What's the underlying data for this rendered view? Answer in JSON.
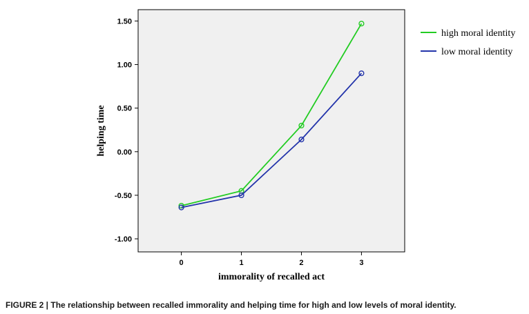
{
  "caption": "FIGURE 2 | The relationship between recalled immorality and helping time for high and low levels of moral identity.",
  "chart_data": {
    "type": "line",
    "xlabel": "immorality of recalled act",
    "ylabel": "helping time",
    "x": [
      0,
      1,
      2,
      3
    ],
    "x_tick_labels": [
      "0",
      "1",
      "2",
      "3"
    ],
    "y_ticks": [
      1.5,
      1.0,
      0.5,
      0.0,
      -0.5,
      -1.0
    ],
    "y_tick_labels": [
      "1.50",
      "1.00",
      "0.50",
      "0.00",
      "-0.50",
      "-1.00"
    ],
    "xlim": [
      -0.72,
      3.72
    ],
    "ylim": [
      -1.15,
      1.63
    ],
    "grid": false,
    "legend_position": "right",
    "plot_background": "#f0f0f0",
    "series": [
      {
        "name": "high moral identity",
        "color": "#22cc22",
        "values": [
          -0.62,
          -0.45,
          0.3,
          1.47
        ]
      },
      {
        "name": "low moral identity",
        "color": "#2233aa",
        "values": [
          -0.64,
          -0.5,
          0.14,
          0.9
        ]
      }
    ]
  }
}
